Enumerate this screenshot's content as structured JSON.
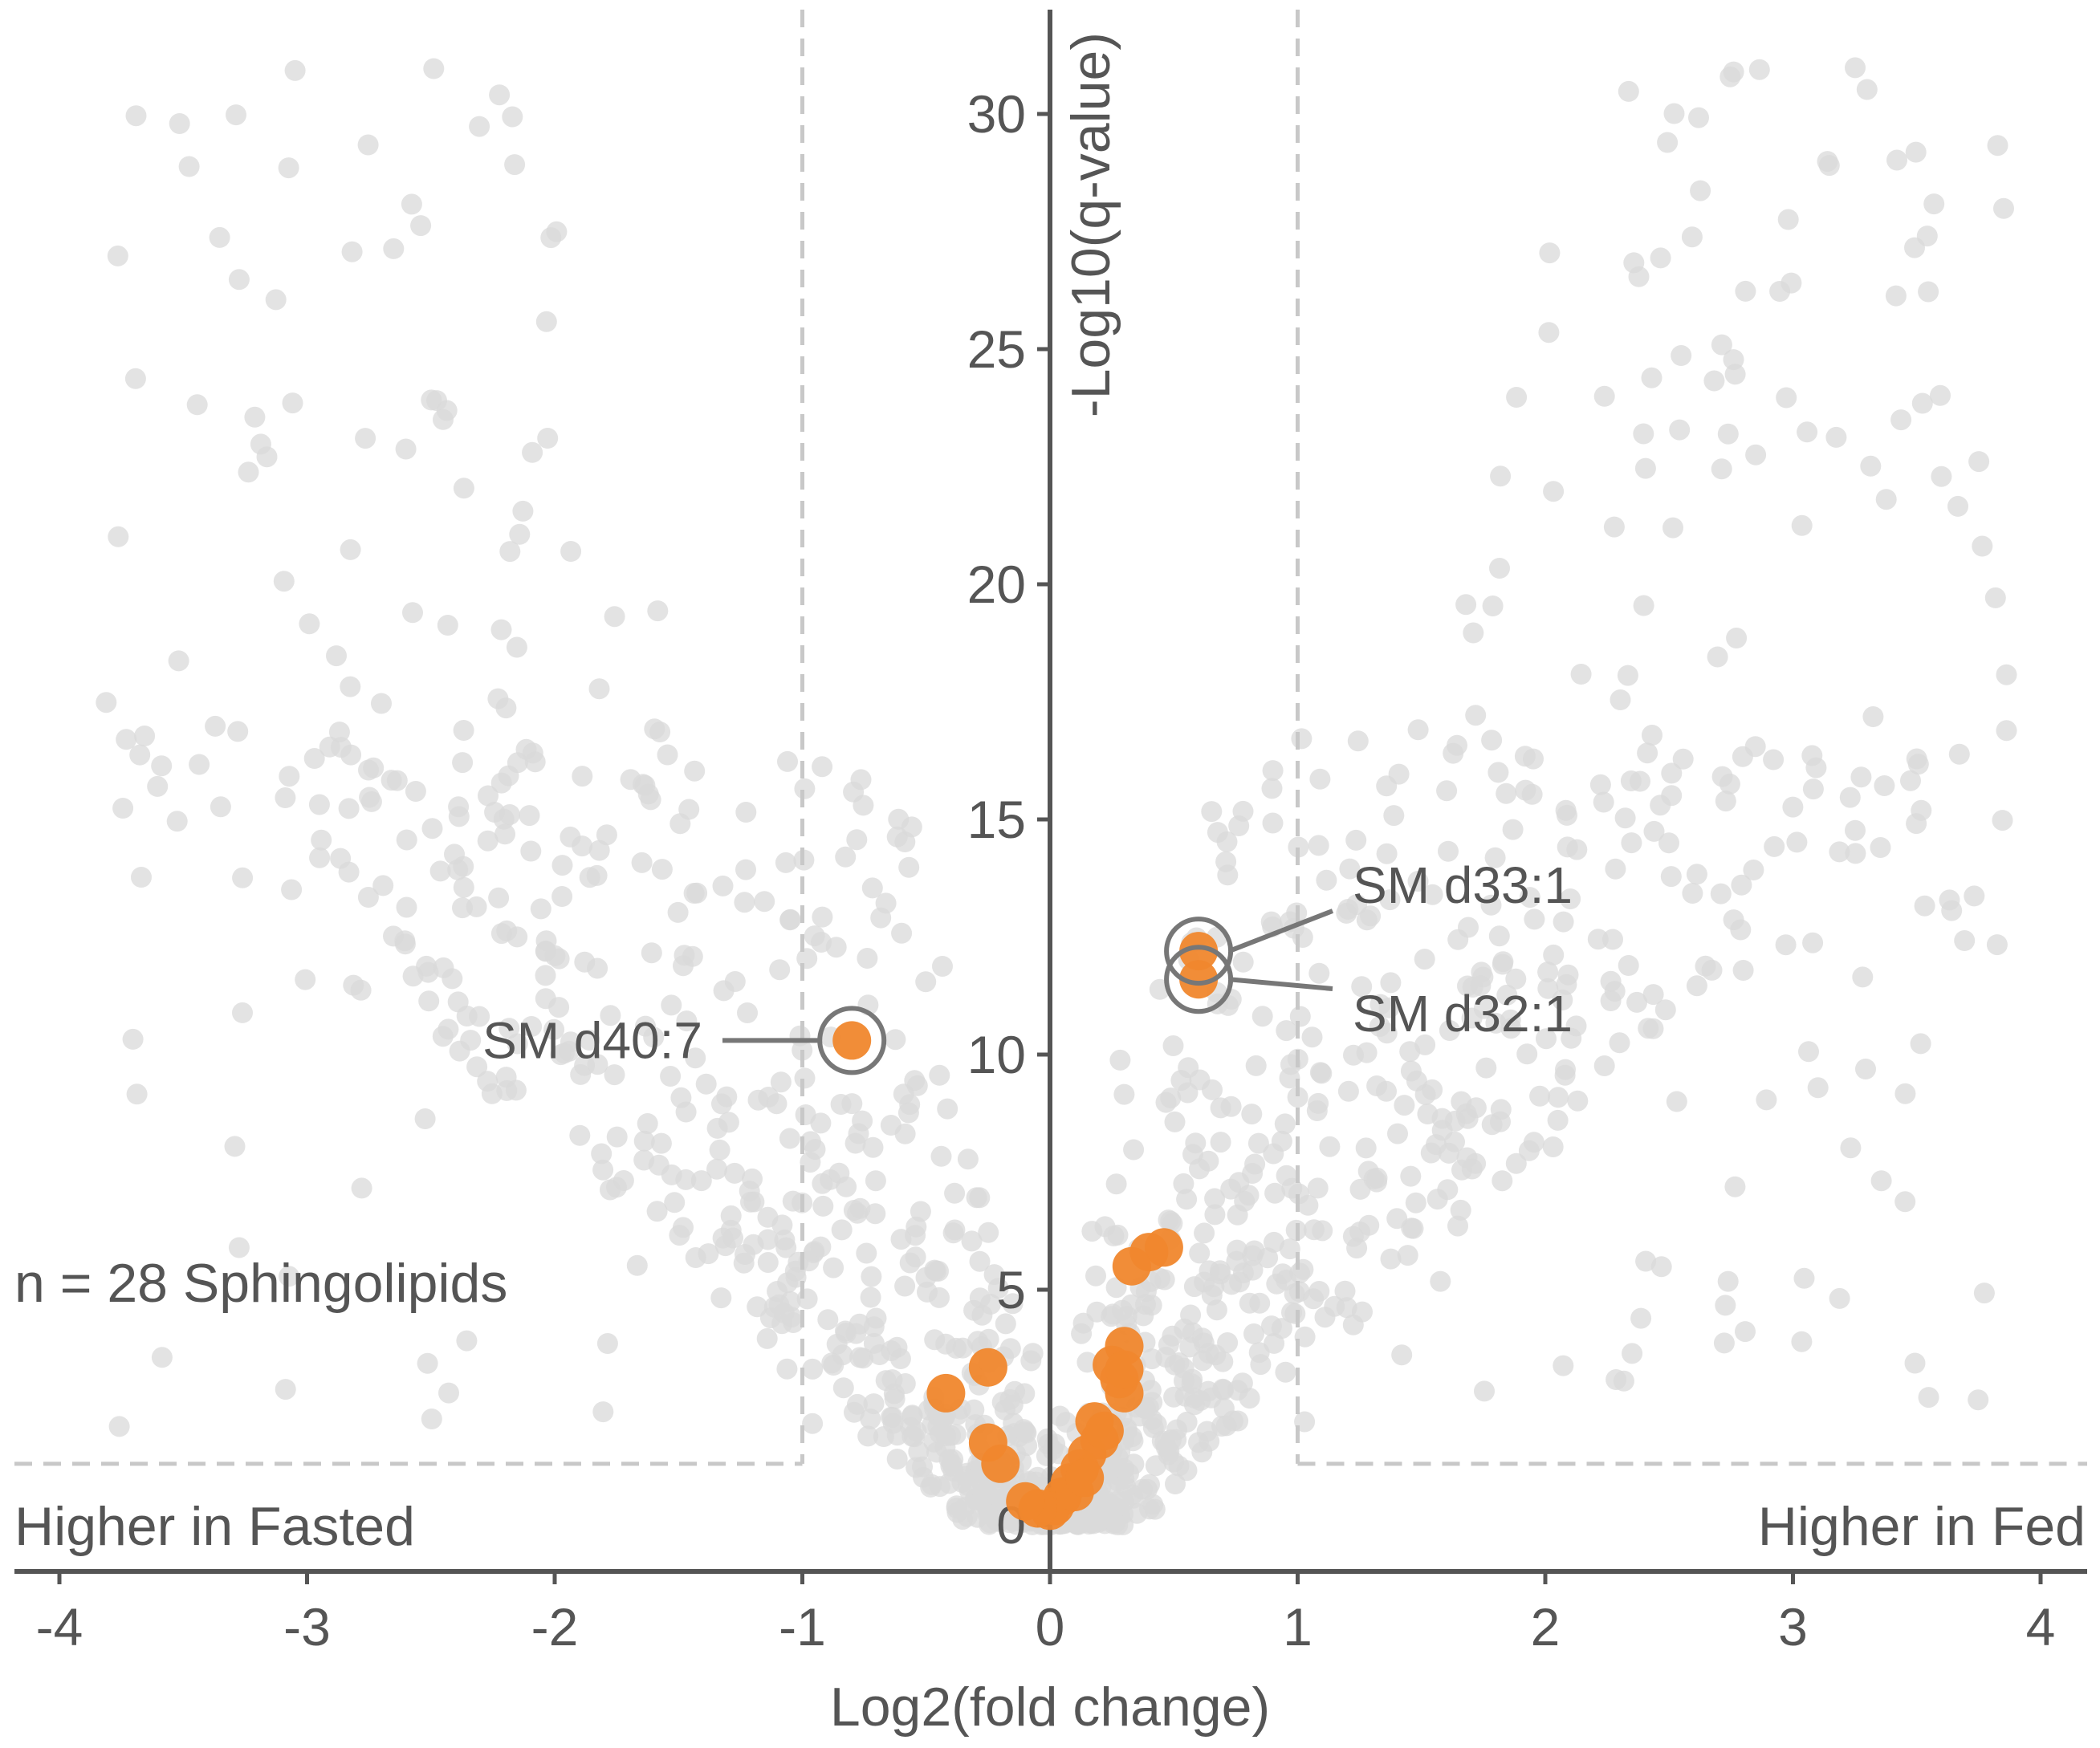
{
  "chart_data": {
    "type": "scatter",
    "xlabel": "Log2(fold change)",
    "ylabel": "-Log10(q-value)",
    "xlim": [
      -4.2,
      4.2
    ],
    "ylim": [
      -0.8,
      31.5
    ],
    "xticks": [
      -4,
      -3,
      -2,
      -1,
      0,
      1,
      2,
      3,
      4
    ],
    "yticks": [
      0,
      5,
      10,
      15,
      20,
      25,
      30
    ],
    "xtick_labels": [
      "-4",
      "-3",
      "-2",
      "-1",
      "0",
      "1",
      "2",
      "3",
      "4"
    ],
    "ytick_labels": [
      "0",
      "5",
      "10",
      "15",
      "20",
      "25",
      "30"
    ],
    "thresholds": {
      "x": [
        -1,
        1
      ],
      "y": 1.3
    },
    "annotations": {
      "count": "n = 28 Sphingolipids",
      "left_region": "Higher in Fasted",
      "right_region": "Higher in Fed"
    },
    "colors": {
      "background_points": "#d9d9d9",
      "highlight_points": "#f0872d",
      "axis": "#555555",
      "threshold_lines": "#c8c8c8",
      "callout_ring": "#777777"
    },
    "series": [
      {
        "name": "Sphingolipids",
        "points": [
          [
            -0.8,
            10.3
          ],
          [
            0.6,
            12.2
          ],
          [
            0.6,
            11.6
          ],
          [
            0.46,
            5.9
          ],
          [
            0.4,
            5.8
          ],
          [
            0.33,
            5.5
          ],
          [
            0.3,
            3.8
          ],
          [
            0.25,
            3.4
          ],
          [
            0.28,
            3.1
          ],
          [
            0.3,
            2.8
          ],
          [
            0.18,
            2.2
          ],
          [
            0.2,
            1.8
          ],
          [
            0.15,
            1.5
          ],
          [
            0.12,
            1.2
          ],
          [
            0.08,
            0.9
          ],
          [
            0.05,
            0.6
          ],
          [
            0.02,
            0.4
          ],
          [
            0.0,
            0.3
          ],
          [
            -0.05,
            0.35
          ],
          [
            -0.1,
            0.5
          ],
          [
            -0.2,
            1.3
          ],
          [
            -0.25,
            1.75
          ],
          [
            -0.25,
            3.35
          ],
          [
            -0.42,
            2.8
          ],
          [
            0.1,
            0.7
          ],
          [
            0.22,
            2.0
          ],
          [
            0.3,
            3.3
          ],
          [
            0.14,
            1.0
          ]
        ]
      }
    ],
    "labeled_points": [
      {
        "label": "SM d40:7",
        "x": -0.8,
        "y": 10.3
      },
      {
        "label": "SM d33:1",
        "x": 0.6,
        "y": 12.2
      },
      {
        "label": "SM d32:1",
        "x": 0.6,
        "y": 11.6
      }
    ]
  }
}
